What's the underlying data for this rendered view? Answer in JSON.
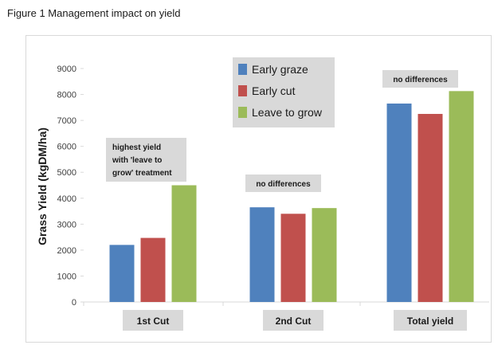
{
  "figure": {
    "title": "Figure 1   Management impact on yield"
  },
  "chart_data": {
    "type": "bar",
    "categories": [
      "1st Cut",
      "2nd Cut",
      "Total yield"
    ],
    "series": [
      {
        "name": "Early graze",
        "color": "#4f81bd",
        "values": [
          2200,
          3650,
          7650
        ]
      },
      {
        "name": "Early cut",
        "color": "#c0504d",
        "values": [
          2470,
          3400,
          7250
        ]
      },
      {
        "name": "Leave to grow",
        "color": "#9bbb59",
        "values": [
          4500,
          3620,
          8130
        ]
      }
    ],
    "ylabel": "Grass Yield (kgDM/ha)",
    "xlabel": "",
    "ylim": [
      0,
      9000
    ],
    "yticks": [
      0,
      1000,
      2000,
      3000,
      4000,
      5000,
      6000,
      7000,
      8000,
      9000
    ],
    "legend_position": "top-center",
    "grid": false,
    "annotations": [
      {
        "category": "1st Cut",
        "lines": [
          "highest yield",
          "with 'leave to",
          "grow' treatment"
        ]
      },
      {
        "category": "2nd Cut",
        "lines": [
          "no differences"
        ]
      },
      {
        "category": "Total yield",
        "lines": [
          "no differences"
        ]
      }
    ]
  }
}
